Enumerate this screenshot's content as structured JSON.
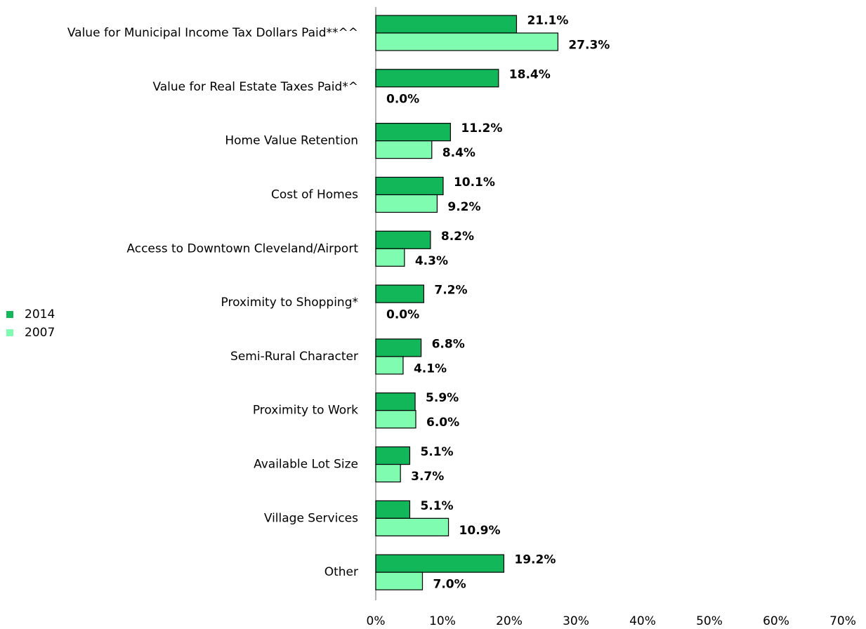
{
  "chart_data": {
    "type": "bar",
    "orientation": "horizontal",
    "categories": [
      "Value for Municipal Income Tax Dollars Paid**^^",
      "Value for Real Estate Taxes Paid*^",
      "Home Value Retention",
      "Cost of Homes",
      "Access to Downtown Cleveland/Airport",
      "Proximity to Shopping*",
      "Semi-Rural Character",
      "Proximity to Work",
      "Available Lot Size",
      "Village Services",
      "Other"
    ],
    "series": [
      {
        "name": "2014",
        "color": "#12b75a",
        "values": [
          21.1,
          18.4,
          11.2,
          10.1,
          8.2,
          7.2,
          6.8,
          5.9,
          5.1,
          5.1,
          19.2
        ],
        "value_labels": [
          "21.1%",
          "18.4%",
          "11.2%",
          "10.1%",
          "8.2%",
          "7.2%",
          "6.8%",
          "5.9%",
          "5.1%",
          "5.1%",
          "19.2%"
        ]
      },
      {
        "name": "2007",
        "color": "#80fcb0",
        "values": [
          27.3,
          0,
          8.4,
          9.2,
          4.3,
          0,
          4.1,
          6.0,
          3.7,
          10.9,
          7.0
        ],
        "value_labels": [
          "27.3%",
          "0.0%",
          "8.4%",
          "9.2%",
          "4.3%",
          "0.0%",
          "4.1%",
          "6.0%",
          "3.7%",
          "10.9%",
          "7.0%"
        ]
      }
    ],
    "xlim": [
      0,
      70
    ],
    "xticks": [
      {
        "value": 0,
        "label": "0%"
      },
      {
        "value": 10,
        "label": "10%"
      },
      {
        "value": 20,
        "label": "20%"
      },
      {
        "value": 30,
        "label": "30%"
      },
      {
        "value": 40,
        "label": "40%"
      },
      {
        "value": 50,
        "label": "50%"
      },
      {
        "value": 60,
        "label": "60%"
      },
      {
        "value": 70,
        "label": "70%"
      }
    ],
    "legend": "left"
  }
}
